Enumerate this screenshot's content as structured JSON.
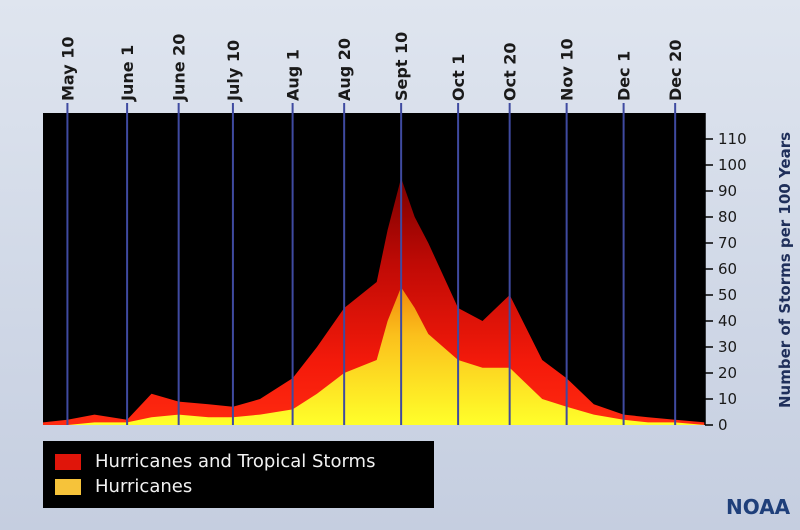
{
  "chart_data": {
    "type": "area",
    "title": "",
    "xlabel": "",
    "ylabel": "Number of Storms per 100 Years",
    "ylim": [
      0,
      110
    ],
    "yticks": [
      "0",
      "10",
      "20",
      "30",
      "40",
      "50",
      "60",
      "70",
      "80",
      "90",
      "100",
      "110"
    ],
    "date_ticks": [
      "May 10",
      "June 1",
      "June 20",
      "July 10",
      "Aug 1",
      "Aug 20",
      "Sept 10",
      "Oct 1",
      "Oct 20",
      "Nov 10",
      "Dec 1",
      "Dec 20"
    ],
    "grid": "vertical",
    "legend_placement": "bottom-left",
    "x_range": [
      "May 1",
      "Dec 31"
    ],
    "x_dates": [
      "May 1",
      "May 10",
      "May 20",
      "June 1",
      "June 10",
      "June 20",
      "July 1",
      "July 10",
      "July 20",
      "Aug 1",
      "Aug 10",
      "Aug 20",
      "Sept 1",
      "Sept 5",
      "Sept 10",
      "Sept 15",
      "Sept 20",
      "Oct 1",
      "Oct 10",
      "Oct 20",
      "Nov 1",
      "Nov 10",
      "Nov 20",
      "Dec 1",
      "Dec 10",
      "Dec 20",
      "Dec 31"
    ],
    "series": [
      {
        "name": "Hurricanes and Tropical Storms",
        "color": "#e0150a",
        "values": [
          1,
          2,
          4,
          2,
          12,
          9,
          8,
          7,
          10,
          18,
          30,
          45,
          55,
          75,
          95,
          80,
          70,
          45,
          40,
          50,
          25,
          18,
          8,
          4,
          3,
          2,
          1
        ]
      },
      {
        "name": "Hurricanes",
        "color": "#ffd21e",
        "values": [
          0,
          0,
          1,
          1,
          3,
          4,
          3,
          3,
          4,
          6,
          12,
          20,
          25,
          40,
          53,
          45,
          35,
          25,
          22,
          22,
          10,
          7,
          4,
          2,
          1,
          1,
          0
        ]
      }
    ]
  },
  "legend": {
    "items": [
      {
        "label": "Hurricanes and Tropical Storms",
        "color": "#e0150a"
      },
      {
        "label": "Hurricanes",
        "color": "#f6c33a"
      }
    ]
  },
  "credit": "NOAA"
}
